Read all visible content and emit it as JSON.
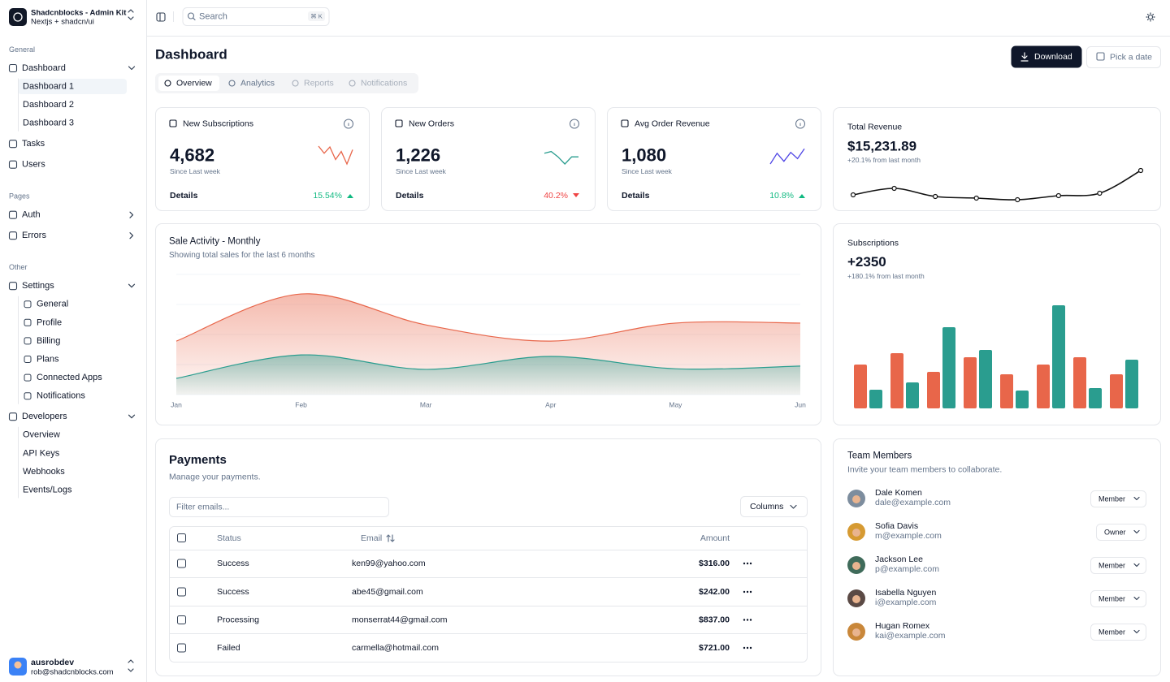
{
  "sidebar": {
    "brand_name": "Shadcnblocks - Admin Kit",
    "brand_sub": "Nextjs + shadcn/ui",
    "groups": [
      {
        "label": "General",
        "items": [
          {
            "label": "Dashboard",
            "children": [
              "Dashboard 1",
              "Dashboard 2",
              "Dashboard 3"
            ]
          },
          {
            "label": "Tasks"
          },
          {
            "label": "Users"
          }
        ]
      },
      {
        "label": "Pages",
        "items": [
          {
            "label": "Auth",
            "expanded": false
          },
          {
            "label": "Errors",
            "expanded": false
          }
        ]
      },
      {
        "label": "Other",
        "items": [
          {
            "label": "Settings",
            "children": [
              "General",
              "Profile",
              "Billing",
              "Plans",
              "Connected Apps",
              "Notifications"
            ]
          },
          {
            "label": "Developers",
            "children": [
              "Overview",
              "API Keys",
              "Webhooks",
              "Events/Logs"
            ]
          }
        ]
      }
    ],
    "user": {
      "name": "ausrobdev",
      "email": "rob@shadcnblocks.com"
    }
  },
  "topbar": {
    "search": "Search",
    "shortcut": "⌘ K"
  },
  "header": {
    "title": "Dashboard",
    "download": "Download",
    "date_picker": "Pick a date"
  },
  "tabs": [
    "Overview",
    "Analytics",
    "Reports",
    "Notifications"
  ],
  "stats": {
    "sparkline_ylim": [
      0,
      20
    ],
    "cards": [
      {
        "title": "New Subscriptions",
        "value": "4,682",
        "caption": "Since Last week",
        "details": "Details",
        "change": "15.54%",
        "trend": "up",
        "color": "#e8664a",
        "sparkline": [
          20,
          12,
          19,
          5,
          14,
          0,
          16
        ]
      },
      {
        "title": "New Orders",
        "value": "1,226",
        "caption": "Since Last week",
        "details": "Details",
        "change": "40.2%",
        "trend": "down",
        "color": "#2a9d8f",
        "sparkline": [
          12,
          14,
          8,
          0,
          8,
          8
        ]
      },
      {
        "title": "Avg Order Revenue",
        "value": "1,080",
        "caption": "Since Last week",
        "details": "Details",
        "change": "10.8%",
        "trend": "up",
        "color": "#4f46e5",
        "sparkline": [
          0,
          12,
          3,
          13,
          6,
          17
        ]
      }
    ]
  },
  "revenue": {
    "title": "Total Revenue",
    "value": "$15,231.89",
    "caption": "+20.1% from last month",
    "color": "#111111",
    "ylim": [
      0,
      60
    ],
    "values": [
      20,
      28,
      18,
      16,
      14,
      19,
      22,
      50
    ]
  },
  "sales": {
    "type": "area",
    "title": "Sale Activity - Monthly",
    "subtitle": "Showing total sales for the last 6 months",
    "categories": [
      "Jan",
      "Feb",
      "Mar",
      "Apr",
      "May",
      "Jun"
    ],
    "series": [
      {
        "color": "#e8664a",
        "values": [
          178,
          335,
          232,
          178,
          238,
          238
        ]
      },
      {
        "color": "#2a9d8f",
        "values": [
          54,
          132,
          84,
          127,
          86,
          95
        ]
      }
    ],
    "ylim": [
      0,
      400
    ],
    "yticks": [
      0,
      100,
      200,
      300,
      400
    ],
    "grid": true
  },
  "subscriptions": {
    "type": "bar",
    "title": "Subscriptions",
    "value": "+2350",
    "caption": "+180.1% from last month",
    "ylim": [
      0,
      140
    ],
    "series": [
      {
        "color": "#e8664a",
        "values": [
          54,
          68,
          45,
          63,
          42,
          54,
          63,
          42
        ]
      },
      {
        "color": "#2a9d8f",
        "values": [
          23,
          32,
          100,
          72,
          22,
          127,
          25,
          60
        ]
      }
    ]
  },
  "payments": {
    "title": "Payments",
    "description": "Manage your payments.",
    "filter_placeholder": "Filter emails...",
    "columns_button": "Columns",
    "headers": [
      "Status",
      "Email",
      "Amount"
    ],
    "rows": [
      {
        "status": "Success",
        "email": "ken99@yahoo.com",
        "amount": "$316.00"
      },
      {
        "status": "Success",
        "email": "abe45@gmail.com",
        "amount": "$242.00"
      },
      {
        "status": "Processing",
        "email": "monserrat44@gmail.com",
        "amount": "$837.00"
      },
      {
        "status": "Failed",
        "email": "carmella@hotmail.com",
        "amount": "$721.00"
      }
    ]
  },
  "team": {
    "title": "Team Members",
    "description": "Invite your team members to collaborate.",
    "members": [
      {
        "name": "Dale Komen",
        "email": "dale@example.com",
        "role": "Member"
      },
      {
        "name": "Sofia Davis",
        "email": "m@example.com",
        "role": "Owner"
      },
      {
        "name": "Jackson Lee",
        "email": "p@example.com",
        "role": "Member"
      },
      {
        "name": "Isabella Nguyen",
        "email": "i@example.com",
        "role": "Member"
      },
      {
        "name": "Hugan Romex",
        "email": "kai@example.com",
        "role": "Member"
      }
    ]
  }
}
